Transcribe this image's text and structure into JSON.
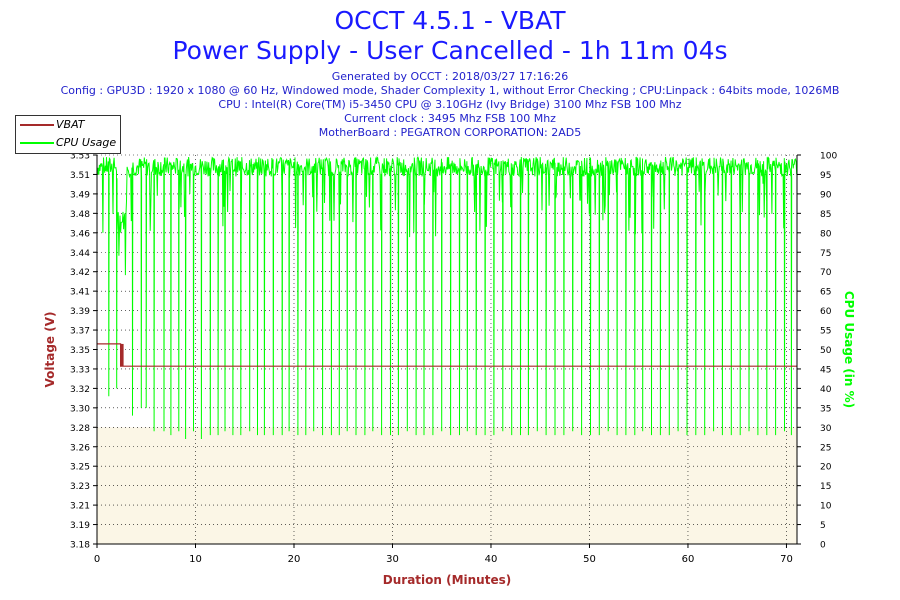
{
  "title": "OCCT 4.5.1 - VBAT",
  "subtitle": "Power Supply - User Cancelled - 1h 11m 04s",
  "info_lines": [
    "Generated by OCCT : 2018/03/27 17:16:26",
    "Config : GPU3D : 1920 x 1080 @ 60 Hz, Windowed mode, Shader Complexity 1, without Error Checking ; CPU:Linpack : 64bits mode, 1026MB",
    "CPU : Intel(R) Core(TM) i5-3450 CPU @ 3.10GHz (Ivy Bridge) 3100 Mhz FSB 100 Mhz",
    "Current clock : 3495 Mhz FSB 100 Mhz",
    "MotherBoard : PEGATRON CORPORATION: 2AD5"
  ],
  "colors": {
    "vbat": "#a52a2a",
    "cpu": "#00ff00",
    "title": "#1a1aff",
    "axis_left": "#a52a2a",
    "axis_right": "#00ff00"
  },
  "chart_data": {
    "type": "line",
    "title": "OCCT 4.5.1 - VBAT",
    "xlabel": "Duration (Minutes)",
    "ylabel": "Voltage (V)",
    "y2label": "CPU Usage (in %)",
    "xlim": [
      0,
      71.07
    ],
    "ylim": [
      3.18,
      3.53
    ],
    "y2lim": [
      0,
      100
    ],
    "x_ticks": [
      "0",
      "10",
      "20",
      "30",
      "40",
      "50",
      "60",
      "70"
    ],
    "y_ticks": [
      "3.18",
      "3.19",
      "3.21",
      "3.23",
      "3.25",
      "3.26",
      "3.28",
      "3.30",
      "3.32",
      "3.33",
      "3.35",
      "3.37",
      "3.39",
      "3.41",
      "3.42",
      "3.44",
      "3.46",
      "3.48",
      "3.49",
      "3.51",
      "3.53"
    ],
    "y2_ticks": [
      "0",
      "5",
      "10",
      "15",
      "20",
      "25",
      "30",
      "35",
      "40",
      "45",
      "50",
      "55",
      "60",
      "65",
      "70",
      "75",
      "80",
      "85",
      "90",
      "95",
      "100"
    ],
    "grid": true,
    "legend_position": "top-left",
    "series": [
      {
        "name": "VBAT",
        "axis": "left",
        "x": [
          0,
          2.4,
          2.4,
          2.7,
          2.7,
          71.07
        ],
        "y": [
          3.36,
          3.36,
          3.34,
          3.34,
          3.34,
          3.34
        ]
      },
      {
        "name": "CPU Usage",
        "axis": "right",
        "baseline": 97,
        "early_segment": {
          "x_range": [
            2,
            3
          ],
          "values": [
            80,
            86
          ]
        },
        "dips_x": [
          1.2,
          2.0,
          3.6,
          4.5,
          5.0,
          5.8,
          6.8,
          7.5,
          8.3,
          9.0,
          9.8,
          10.6,
          11.5,
          12.3,
          13.0,
          13.8,
          14.6,
          15.5,
          16.3,
          17.0,
          17.9,
          18.8,
          19.5,
          20.4,
          21.2,
          22.0,
          22.9,
          23.8,
          24.6,
          25.4,
          26.3,
          27.2,
          28.0,
          28.9,
          29.8,
          30.6,
          31.5,
          32.4,
          33.2,
          34.1,
          35.0,
          35.9,
          36.8,
          37.6,
          38.5,
          39.4,
          40.3,
          41.2,
          42.1,
          43.0,
          43.8,
          44.7,
          45.6,
          46.5,
          47.4,
          48.3,
          49.2,
          50.1,
          51.0,
          51.9,
          52.8,
          53.7,
          54.6,
          55.4,
          56.3,
          57.2,
          58.1,
          59.0,
          59.9,
          60.8,
          61.7,
          62.6,
          63.5,
          64.4,
          65.3,
          66.2,
          67.1,
          68.0,
          68.9,
          69.8,
          70.5
        ],
        "dips_min": [
          38,
          40,
          33,
          35,
          35,
          29,
          29,
          28,
          29,
          27,
          29,
          27,
          28,
          28,
          29,
          28,
          28,
          29,
          28,
          28,
          28,
          28,
          29,
          28,
          28,
          29,
          28,
          28,
          28,
          29,
          28,
          28,
          29,
          28,
          28,
          28,
          29,
          28,
          28,
          28,
          29,
          28,
          28,
          29,
          28,
          28,
          28,
          29,
          28,
          28,
          28,
          29,
          28,
          28,
          28,
          29,
          28,
          28,
          28,
          29,
          28,
          28,
          28,
          29,
          28,
          28,
          28,
          29,
          28,
          28,
          28,
          29,
          28,
          28,
          28,
          29,
          28,
          28,
          28,
          29,
          28
        ]
      }
    ]
  }
}
